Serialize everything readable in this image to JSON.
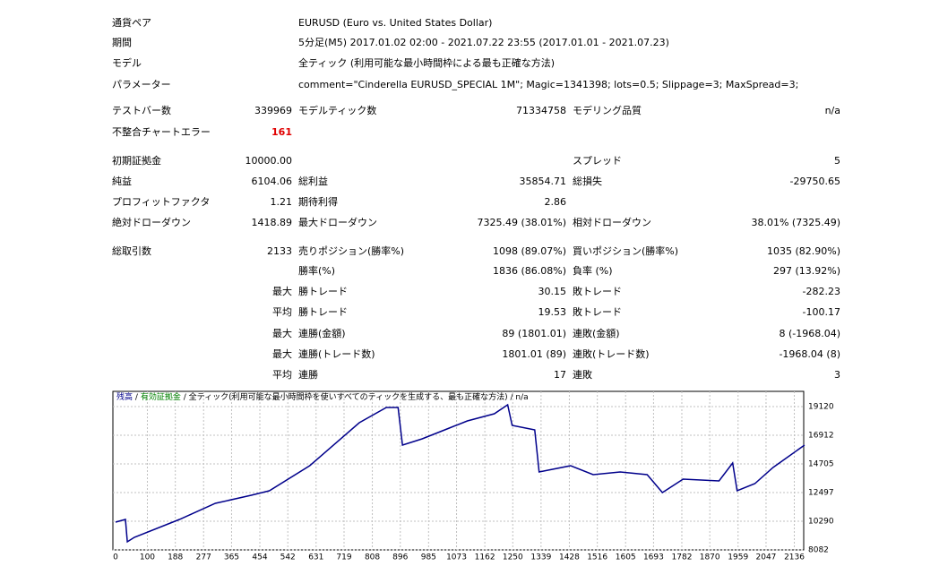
{
  "info": [
    [
      "通貨ペア",
      "EURUSD (Euro vs. United States Dollar)"
    ],
    [
      "期間",
      "5分足(M5) 2017.01.02 02:00 - 2021.07.22 23:55 (2017.01.01 - 2021.07.23)"
    ],
    [
      "モデル",
      "全ティック (利用可能な最小時間枠による最も正確な方法)"
    ],
    [
      "パラメーター",
      "comment=\"Cinderella EURUSD_SPECIAL 1M\"; Magic=1341398; lots=0.5; Slippage=3; MaxSpread=3;"
    ]
  ],
  "stats": [
    [
      "テストバー数",
      "339969",
      "モデルティック数",
      "71334758",
      "モデリング品質",
      "n/a"
    ],
    [
      "不整合チャートエラー",
      "161",
      null,
      null,
      null,
      null
    ],
    [
      "初期証拠金",
      "10000.00",
      null,
      null,
      "スプレッド",
      "5"
    ],
    [
      "純益",
      "6104.06",
      "総利益",
      "35854.71",
      "総損失",
      "-29750.65"
    ],
    [
      "プロフィットファクタ",
      "1.21",
      "期待利得",
      "2.86",
      null,
      null
    ],
    [
      "絶対ドローダウン",
      "1418.89",
      "最大ドローダウン",
      "7325.49 (38.01%)",
      "相対ドローダウン",
      "38.01% (7325.49)"
    ],
    [
      "総取引数",
      "2133",
      "売りポジション(勝率%)",
      "1098 (89.07%)",
      "買いポジション(勝率%)",
      "1035 (82.90%)"
    ],
    [
      null,
      null,
      "勝率(%)",
      "1836 (86.08%)",
      "負率 (%)",
      "297 (13.92%)"
    ],
    [
      null,
      "最大",
      "勝トレード",
      "30.15",
      "敗トレード",
      "-282.23"
    ],
    [
      null,
      "平均",
      "勝トレード",
      "19.53",
      "敗トレード",
      "-100.17"
    ],
    [
      null,
      "最大",
      "連勝(金額)",
      "89 (1801.01)",
      "連敗(金額)",
      "8 (-1968.04)"
    ],
    [
      null,
      "最大",
      "連勝(トレード数)",
      "1801.01 (89)",
      "連敗(トレード数)",
      "-1968.04 (8)"
    ],
    [
      null,
      "平均",
      "連勝",
      "17",
      "連敗",
      "3"
    ]
  ],
  "chart": {
    "type": "line",
    "legend_note": "全ティック(利用可能な最小時間枠を使いすべてのティックを生成する、最も正確な方法)",
    "legend_extra": "n/a",
    "separator": "/",
    "x": [
      0,
      31,
      37,
      59,
      201,
      314,
      427,
      484,
      611,
      767,
      852,
      889,
      903,
      965,
      1050,
      1107,
      1192,
      1234,
      1248,
      1319,
      1333,
      1432,
      1503,
      1588,
      1673,
      1721,
      1786,
      1899,
      1942,
      1956,
      2012,
      2069,
      2168
    ],
    "series": [
      {
        "name": "残高",
        "color": "#00008b",
        "values": [
          10220,
          10427,
          8703,
          9047,
          10427,
          11668,
          12289,
          12634,
          14565,
          17876,
          19049,
          19049,
          16151,
          16634,
          17462,
          18014,
          18565,
          19255,
          17669,
          17324,
          14082,
          14565,
          13875,
          14082,
          13875,
          12496,
          13531,
          13393,
          14772,
          12634,
          13186,
          14427,
          16151
        ]
      },
      {
        "name": "有効証拠金",
        "color": "#008000"
      }
    ],
    "xlim": [
      0,
      2174
    ],
    "ylim": [
      8082,
      20290
    ],
    "xticks": [
      0,
      100,
      188,
      277,
      365,
      454,
      542,
      631,
      719,
      808,
      896,
      985,
      1073,
      1162,
      1250,
      1339,
      1428,
      1516,
      1605,
      1693,
      1782,
      1870,
      1959,
      2047,
      2136
    ],
    "yticks": [
      8082,
      10290,
      12497,
      14705,
      16912,
      19120
    ],
    "grid": true
  }
}
